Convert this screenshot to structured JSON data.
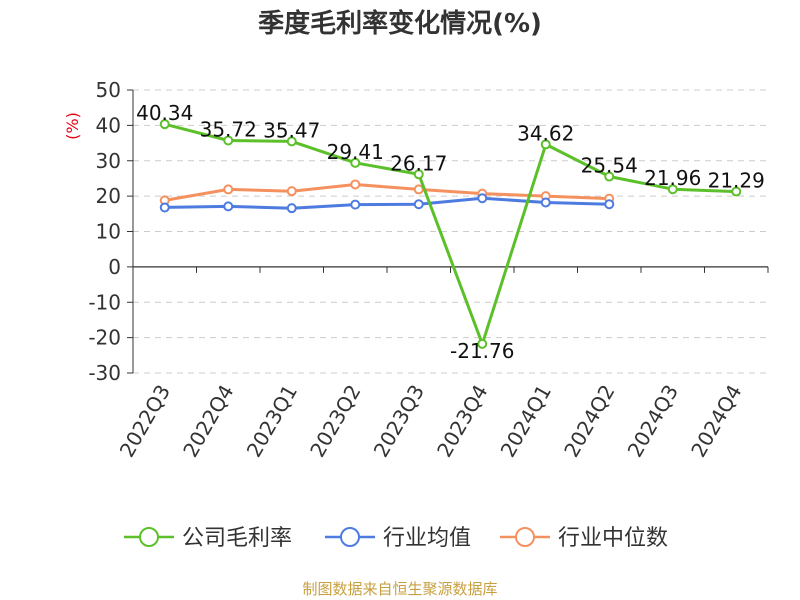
{
  "chart_data": {
    "type": "line",
    "title": "季度毛利率变化情况(%)",
    "ylabel": "(%)",
    "ylim": [
      -30,
      50
    ],
    "yticks": [
      50,
      40,
      30,
      20,
      10,
      0,
      -10,
      -20,
      -30
    ],
    "grid": true,
    "legend_position": "bottom",
    "categories": [
      "2022Q3",
      "2022Q4",
      "2023Q1",
      "2023Q2",
      "2023Q3",
      "2023Q4",
      "2024Q1",
      "2024Q2",
      "2024Q3",
      "2024Q4"
    ],
    "series": [
      {
        "name": "公司毛利率",
        "color": "#5cc02a",
        "values": [
          40.34,
          35.72,
          35.47,
          29.41,
          26.17,
          -21.76,
          34.62,
          25.54,
          21.96,
          21.29
        ],
        "labels": [
          "40.34",
          "35.72",
          "35.47",
          "29.41",
          "26.17",
          "-21.76",
          "34.62",
          "25.54",
          "21.96",
          "21.29"
        ]
      },
      {
        "name": "行业均值",
        "color": "#4e7be0",
        "values": [
          16.8,
          17.1,
          16.6,
          17.6,
          17.7,
          19.4,
          18.2,
          17.7,
          null,
          null
        ]
      },
      {
        "name": "行业中位数",
        "color": "#f5915f",
        "values": [
          18.8,
          21.9,
          21.4,
          23.3,
          21.9,
          20.7,
          20.0,
          19.3,
          null,
          null
        ]
      }
    ]
  },
  "footer": {
    "source": "制图数据来自恒生聚源数据库"
  }
}
